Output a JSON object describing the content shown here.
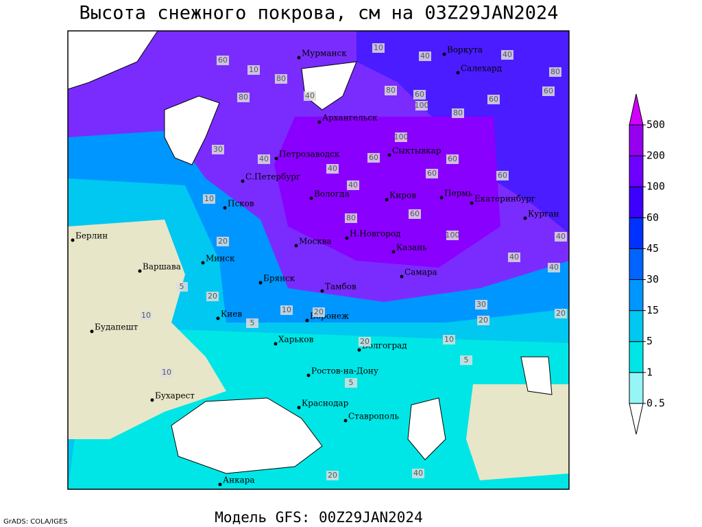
{
  "title": "Высота снежного покрова, см на 03Z29JAN2024",
  "footer": "Модель GFS: 00Z29JAN2024",
  "credit": "GrADS: COLA/IGES",
  "colorbar": {
    "levels": [
      0.5,
      1,
      5,
      15,
      30,
      45,
      60,
      100,
      200,
      500
    ],
    "colors": [
      "#ffffff",
      "#96f5f5",
      "#00e6e6",
      "#00c8f0",
      "#0096ff",
      "#0064ff",
      "#0032ff",
      "#3c00ff",
      "#6e00ff",
      "#9600f0",
      "#d200ff"
    ]
  },
  "cities": [
    "Мурманск",
    "Воркута",
    "Салехард",
    "Архангельск",
    "Петрозаводск",
    "Сыктывкар",
    "С.Петербург",
    "Вологда",
    "Киров",
    "Пермь",
    "Екатеринбург",
    "Курган",
    "Псков",
    "Берлин",
    "Н.Новгород",
    "Москва",
    "Казань",
    "Минск",
    "Варшава",
    "Самара",
    "Брянск",
    "Тамбов",
    "Киев",
    "Воронеж",
    "Будапешт",
    "Харьков",
    "Волгоград",
    "Ростов-на-Дону",
    "Бухарест",
    "Краснодар",
    "Ставрополь",
    "Анкара"
  ],
  "contour_labels": [
    10,
    40,
    40,
    60,
    10,
    80,
    40,
    80,
    80,
    60,
    100,
    80,
    60,
    60,
    30,
    40,
    60,
    100,
    60,
    80,
    40,
    60,
    40,
    60,
    80,
    60,
    100,
    40,
    40,
    40,
    20,
    10,
    20,
    5,
    10,
    5,
    20,
    10,
    30,
    20,
    20,
    10,
    5,
    20,
    10,
    5,
    20,
    40
  ]
}
